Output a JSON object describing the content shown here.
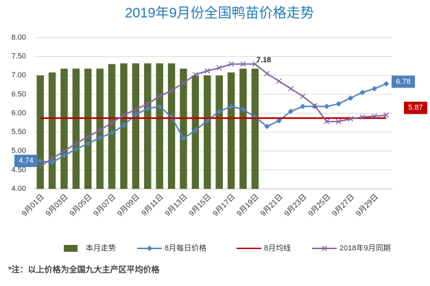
{
  "chart_data": {
    "type": "combo",
    "title": "2019年9月份全国鸭苗价格走势",
    "categories": [
      "9月01日",
      null,
      "9月03日",
      null,
      "9月05日",
      null,
      "9月07日",
      null,
      "9月09日",
      null,
      "9月11日",
      null,
      "9月13日",
      null,
      "9月15日",
      null,
      "9月17日",
      null,
      "9月19日",
      null,
      "9月21日",
      null,
      "9月23日",
      null,
      "9月25日",
      null,
      "9月27日",
      null,
      "9月29日",
      null
    ],
    "ylim": [
      4,
      8
    ],
    "yticks": [
      {
        "value": 4,
        "label": "4.00"
      },
      {
        "value": 4.5,
        "label": "4.50"
      },
      {
        "value": 5,
        "label": "5.00"
      },
      {
        "value": 5.5,
        "label": "5.50"
      },
      {
        "value": 6,
        "label": "6.00"
      },
      {
        "value": 6.5,
        "label": "6.50"
      },
      {
        "value": 7,
        "label": "7.00"
      },
      {
        "value": 7.5,
        "label": "7.50"
      },
      {
        "value": 8,
        "label": "8.00"
      }
    ],
    "grid": true,
    "legend": "bottom",
    "series": [
      {
        "name": "本月走势",
        "type": "bar",
        "color": "#556b2f",
        "values": [
          7.0,
          7.08,
          7.18,
          7.18,
          7.18,
          7.18,
          7.3,
          7.32,
          7.32,
          7.32,
          7.32,
          7.32,
          7.18,
          7.0,
          7.0,
          7.0,
          7.08,
          7.18,
          7.18,
          null,
          null,
          null,
          null,
          null,
          null,
          null,
          null,
          null,
          null,
          null
        ]
      },
      {
        "name": "8月每日价格",
        "type": "line",
        "marker": "diamond",
        "color": "#4f81bd",
        "values": [
          4.74,
          4.7,
          4.88,
          5.05,
          5.2,
          5.35,
          5.48,
          5.68,
          5.97,
          6.12,
          6.18,
          5.9,
          5.33,
          5.55,
          5.8,
          6.05,
          6.18,
          6.1,
          5.9,
          5.65,
          5.8,
          6.05,
          6.18,
          6.18,
          6.18,
          6.25,
          6.4,
          6.55,
          6.65,
          6.78
        ]
      },
      {
        "name": "8月均线",
        "type": "line",
        "marker": "none",
        "color": "#c00000",
        "values": [
          5.87,
          5.87,
          5.87,
          5.87,
          5.87,
          5.87,
          5.87,
          5.87,
          5.87,
          5.87,
          5.87,
          5.87,
          5.87,
          5.87,
          5.87,
          5.87,
          5.87,
          5.87,
          5.87,
          5.87,
          5.87,
          5.87,
          5.87,
          5.87,
          5.87,
          5.87,
          5.87,
          5.87,
          5.87,
          5.87
        ]
      },
      {
        "name": "2018年9月同期",
        "type": "line",
        "marker": "x",
        "color": "#8064a2",
        "values": [
          4.6,
          4.8,
          5.0,
          5.2,
          5.38,
          5.55,
          5.75,
          5.95,
          6.1,
          6.25,
          6.45,
          6.6,
          6.8,
          7.02,
          7.12,
          7.2,
          7.3,
          7.3,
          7.3,
          7.05,
          6.85,
          6.65,
          6.45,
          6.2,
          5.78,
          5.78,
          5.85,
          5.9,
          5.92,
          5.95
        ]
      }
    ],
    "footnote": "*注：以上价格为全国九大主产区平均价格"
  }
}
